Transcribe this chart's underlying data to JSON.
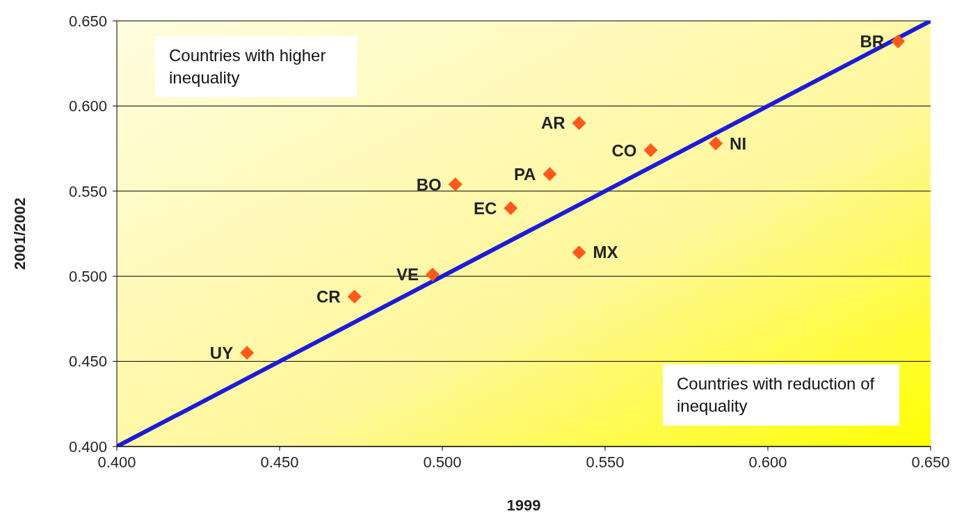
{
  "chart_data": {
    "type": "scatter",
    "xlabel": "1999",
    "ylabel": "2001/2002",
    "xlim": [
      0.4,
      0.65
    ],
    "xticks": [
      {
        "value": 0.4,
        "label": "0.400"
      },
      {
        "value": 0.45,
        "label": "0.450"
      },
      {
        "value": 0.5,
        "label": "0.500"
      },
      {
        "value": 0.55,
        "label": "0.550"
      },
      {
        "value": 0.6,
        "label": "0.600"
      },
      {
        "value": 0.65,
        "label": "0.650"
      }
    ],
    "ylim": [
      0.4,
      0.65
    ],
    "yticks": [
      {
        "value": 0.4,
        "label": "0.400"
      },
      {
        "value": 0.45,
        "label": "0.450"
      },
      {
        "value": 0.5,
        "label": "0.500"
      },
      {
        "value": 0.55,
        "label": "0.550"
      },
      {
        "value": 0.6,
        "label": "0.600"
      },
      {
        "value": 0.65,
        "label": "0.650"
      }
    ],
    "grid": "y",
    "series": [
      {
        "marker": "diamond",
        "color": "#ff5a1a",
        "x": [
          0.64,
          0.542,
          0.564,
          0.584,
          0.533,
          0.504,
          0.521,
          0.542,
          0.497,
          0.473,
          0.44
        ],
        "values": [
          0.638,
          0.59,
          0.574,
          0.578,
          0.56,
          0.554,
          0.54,
          0.514,
          0.501,
          0.488,
          0.455
        ]
      },
      {
        "type": "line",
        "color": "#1c1cd8",
        "x": [
          0.4,
          0.65
        ],
        "values": [
          0.4,
          0.65
        ]
      }
    ],
    "annotations": [
      {
        "text": "BR",
        "x": 0.64,
        "y": 0.638
      },
      {
        "text": "AR",
        "x": 0.542,
        "y": 0.59
      },
      {
        "text": "CO",
        "x": 0.564,
        "y": 0.574
      },
      {
        "text": "NI",
        "x": 0.584,
        "y": 0.578
      },
      {
        "text": "PA",
        "x": 0.533,
        "y": 0.56
      },
      {
        "text": "BO",
        "x": 0.504,
        "y": 0.554
      },
      {
        "text": "EC",
        "x": 0.521,
        "y": 0.54
      },
      {
        "text": "MX",
        "x": 0.542,
        "y": 0.514
      },
      {
        "text": "VE",
        "x": 0.497,
        "y": 0.501
      },
      {
        "text": "CR",
        "x": 0.473,
        "y": 0.488
      },
      {
        "text": "UY",
        "x": 0.44,
        "y": 0.455
      },
      "Countries with higher inequality",
      "Countries with reduction of inequality"
    ]
  }
}
